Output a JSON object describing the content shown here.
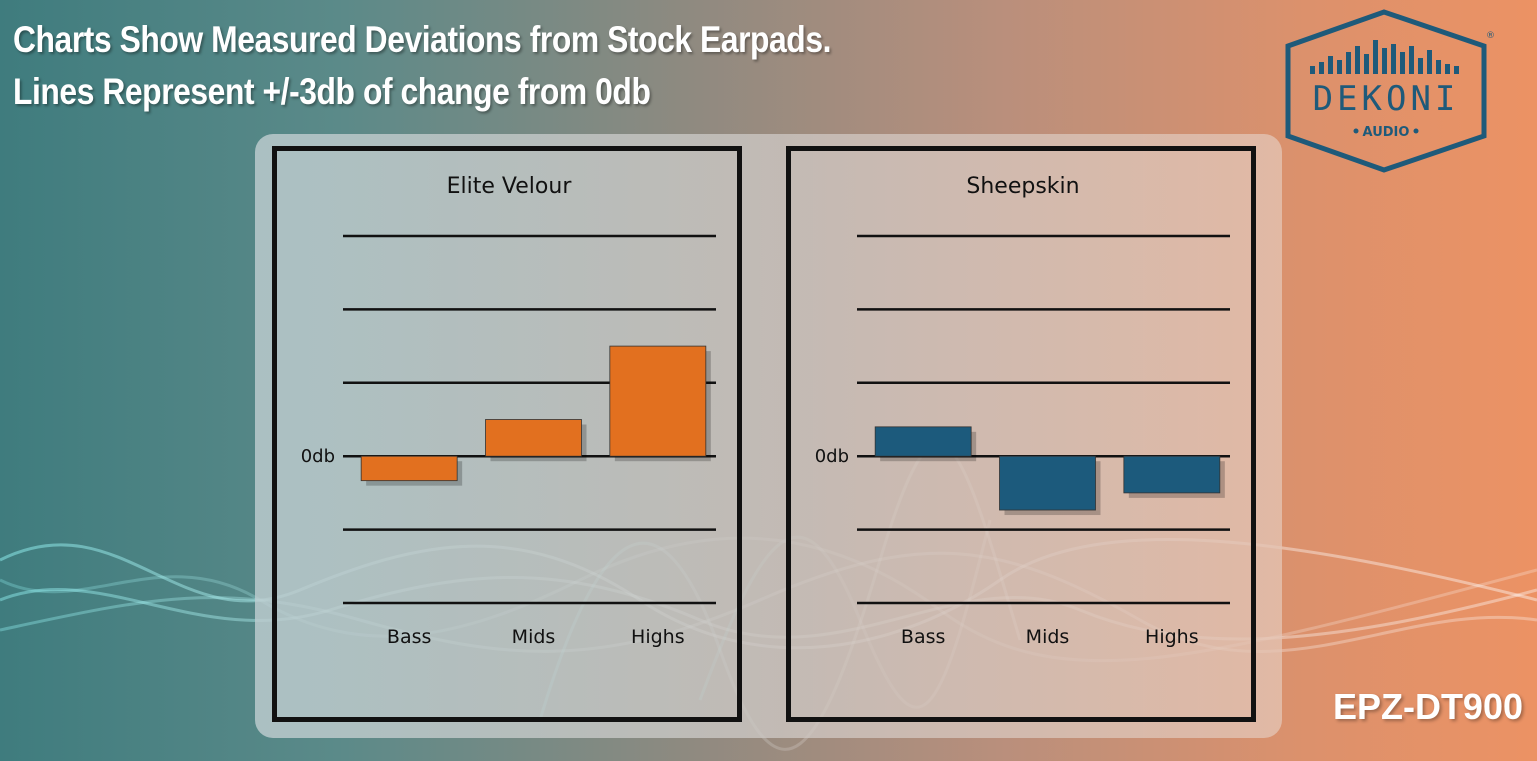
{
  "headline": {
    "line1": "Charts Show Measured Deviations from Stock Earpads.",
    "line2": "Lines Represent +/-3db of change from 0db"
  },
  "logo": {
    "brand": "DEKONI",
    "sub": "AUDIO",
    "registered": "®",
    "color": "#1e5a7a"
  },
  "model": "EPZ-DT900",
  "chart_data": [
    {
      "type": "bar",
      "title": "Elite Velour",
      "categories": [
        "Bass",
        "Mids",
        "Highs"
      ],
      "values": [
        -1,
        1.5,
        4.5
      ],
      "ylim": [
        -6,
        9
      ],
      "gridlines": [
        -6,
        -3,
        0,
        3,
        6,
        9
      ],
      "zero_label": "0db",
      "color": "#e2701f"
    },
    {
      "type": "bar",
      "title": "Sheepskin",
      "categories": [
        "Bass",
        "Mids",
        "Highs"
      ],
      "values": [
        1.2,
        -2.2,
        -1.5
      ],
      "ylim": [
        -6,
        9
      ],
      "gridlines": [
        -6,
        -3,
        0,
        3,
        6,
        9
      ],
      "zero_label": "0db",
      "color": "#1c5a7c"
    }
  ]
}
